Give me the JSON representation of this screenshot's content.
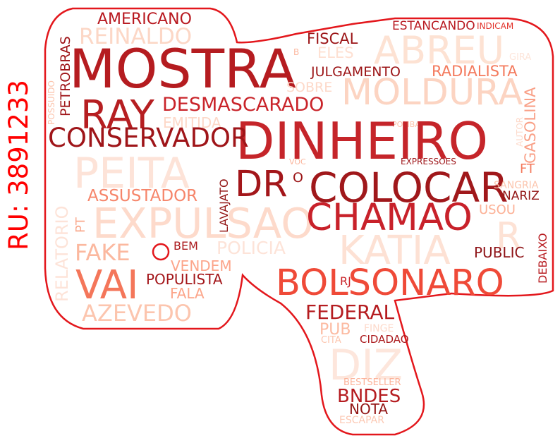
{
  "side_label": "RU: 3891233",
  "colors": {
    "outline": "#e3171c",
    "label": "#ff0000"
  },
  "words": [
    {
      "text": "AMERICANO",
      "color": "#b81920"
    },
    {
      "text": "REINALDO",
      "color": "#fcd7c6"
    },
    {
      "text": "ESTANCANDO",
      "color": "#b81920"
    },
    {
      "text": "INDICAM",
      "color": "#e2332b"
    },
    {
      "text": "FISCAL",
      "color": "#9c1517"
    },
    {
      "text": "ABREU",
      "color": "#fde2d3"
    },
    {
      "text": "ELES",
      "color": "#fee0d2"
    },
    {
      "text": "B",
      "color": "#fcb8a0"
    },
    {
      "text": "GIRA",
      "color": "#fde5da"
    },
    {
      "text": "MOSTRA",
      "color": "#b51c20"
    },
    {
      "text": "PETROBRAS",
      "color": "#9f1519"
    },
    {
      "text": "POSSUIDO",
      "color": "#fcc5ae"
    },
    {
      "text": "JULGAMENTO",
      "color": "#9c1517"
    },
    {
      "text": "RADIALISTA",
      "color": "#f47a5d"
    },
    {
      "text": "MOLDURA",
      "color": "#fcd4c2"
    },
    {
      "text": "SOBRE",
      "color": "#fdd9c9"
    },
    {
      "text": "GASOLINA",
      "color": "#f9a087"
    },
    {
      "text": "AUTOR",
      "color": "#fddacb"
    },
    {
      "text": "RAY",
      "color": "#b61e21"
    },
    {
      "text": "DESMASCARADO",
      "color": "#c9242a"
    },
    {
      "text": "EMITIDA",
      "color": "#fdd8c8"
    },
    {
      "text": "POMBA",
      "color": "#fcc3ab"
    },
    {
      "text": "DINHEIRO",
      "color": "#c5252a"
    },
    {
      "text": "CONSERVADOR",
      "color": "#9f1519"
    },
    {
      "text": "PEITA",
      "color": "#fde3d8"
    },
    {
      "text": "LAVAJATO",
      "color": "#921515"
    },
    {
      "text": "VOC",
      "color": "#fbb59c"
    },
    {
      "text": "EXPRESSOES",
      "color": "#9e1519"
    },
    {
      "text": "FT",
      "color": "#f47a5d"
    },
    {
      "text": "DR",
      "color": "#a3161a"
    },
    {
      "text": "O",
      "color": "#9c1517"
    },
    {
      "text": "COLOCAR",
      "color": "#a0181b"
    },
    {
      "text": "SANGRIA",
      "color": "#fcc5ae"
    },
    {
      "text": "NARIZ",
      "color": "#921515"
    },
    {
      "text": "RELATORIO",
      "color": "#fde3d8"
    },
    {
      "text": "ASSUSTADOR",
      "color": "#f6856a"
    },
    {
      "text": "PT",
      "color": "#f9a98e"
    },
    {
      "text": "EXPULSAO",
      "color": "#fddacb"
    },
    {
      "text": "CHAMAO",
      "color": "#c8212a"
    },
    {
      "text": "USOU",
      "color": "#fcb095"
    },
    {
      "text": "R",
      "color": "#fde2d5"
    },
    {
      "text": "DEBAIXO",
      "color": "#b71c21"
    },
    {
      "text": "KATIA",
      "color": "#fde1d4"
    },
    {
      "text": "FAKE",
      "color": "#fbb89f"
    },
    {
      "text": "BEM",
      "color": "#ab1a1d"
    },
    {
      "text": "POLICIA",
      "color": "#fde3d8"
    },
    {
      "text": "PUBLIC",
      "color": "#8e1317"
    },
    {
      "text": "VENDEM",
      "color": "#fca58a"
    },
    {
      "text": "VAI",
      "color": "#f4765a"
    },
    {
      "text": "POPULISTA",
      "color": "#a3161a"
    },
    {
      "text": "BOLSONARO",
      "color": "#ef4a38"
    },
    {
      "text": "RJ",
      "color": "#c9242a"
    },
    {
      "text": "FALA",
      "color": "#fca58a"
    },
    {
      "text": "AZEVEDO",
      "color": "#fcc5ae"
    },
    {
      "text": "FEDERAL",
      "color": "#b51c20"
    },
    {
      "text": "PUB",
      "color": "#fcbaa1"
    },
    {
      "text": "FINGE",
      "color": "#fddacb"
    },
    {
      "text": "CITA",
      "color": "#fcc5ae"
    },
    {
      "text": "CIDADAO",
      "color": "#ab1a1d"
    },
    {
      "text": "DIZ",
      "color": "#fde6dc"
    },
    {
      "text": "BESTSELLER",
      "color": "#fcb39a"
    },
    {
      "text": "BNDES",
      "color": "#b51c20"
    },
    {
      "text": "NOTA",
      "color": "#921515"
    },
    {
      "text": "ESCAPAR",
      "color": "#fcc9b4"
    }
  ]
}
